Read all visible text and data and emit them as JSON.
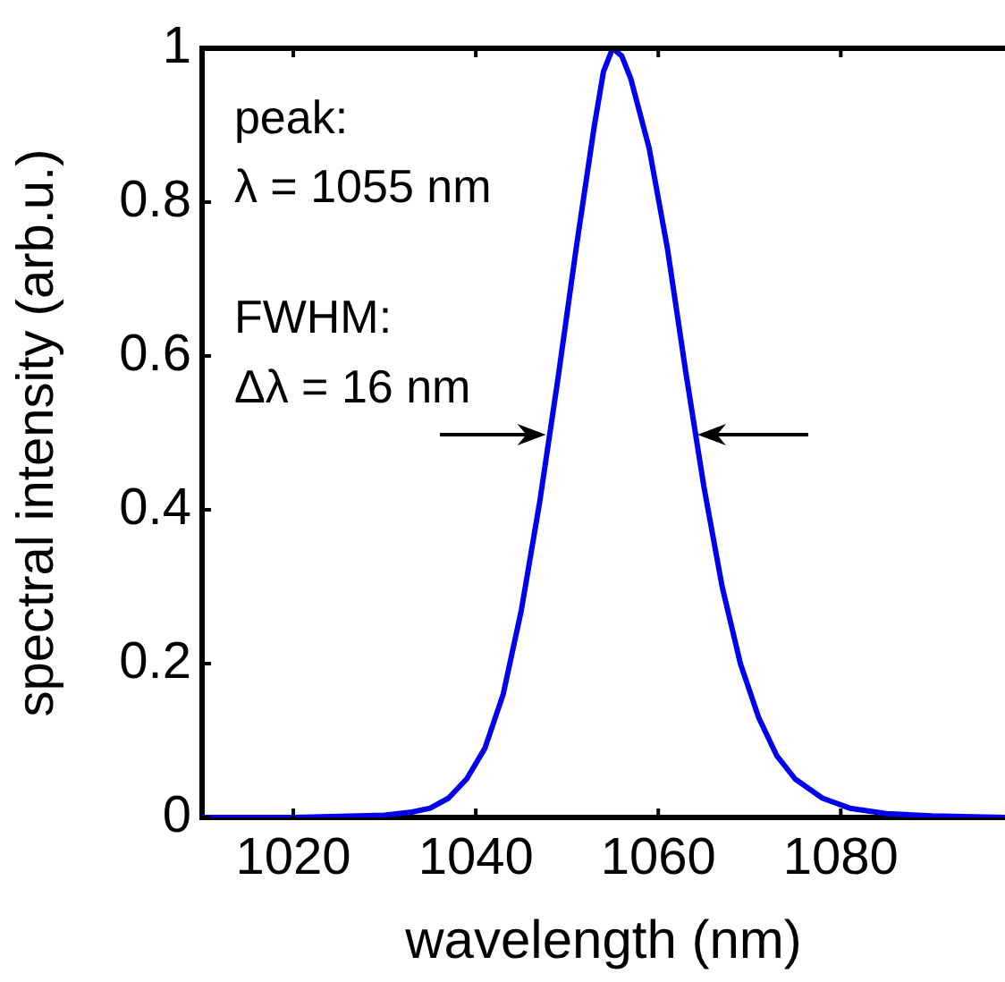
{
  "chart_data": {
    "type": "line",
    "xlabel": "wavelength (nm)",
    "ylabel": "spectral intensity (arb.u.)",
    "x": [
      1010,
      1020,
      1030,
      1033,
      1035,
      1037,
      1039,
      1041,
      1043,
      1045,
      1047,
      1049,
      1051,
      1053,
      1054,
      1055,
      1056,
      1057,
      1059,
      1061,
      1063,
      1065,
      1067,
      1069,
      1071,
      1073,
      1075,
      1078,
      1081,
      1085,
      1090,
      1098
    ],
    "series": [
      {
        "color": "#0000ee",
        "values": [
          0,
          0,
          0.003,
          0.007,
          0.012,
          0.025,
          0.05,
          0.09,
          0.16,
          0.27,
          0.41,
          0.57,
          0.74,
          0.9,
          0.97,
          1,
          0.99,
          0.96,
          0.87,
          0.74,
          0.58,
          0.43,
          0.3,
          0.2,
          0.13,
          0.08,
          0.05,
          0.025,
          0.012,
          0.005,
          0.002,
          0
        ]
      }
    ],
    "xlim": [
      1010,
      1098
    ],
    "xticks": [
      1020,
      1040,
      1060,
      1080
    ],
    "ylim": [
      0,
      1
    ],
    "yticks": [
      0,
      0.2,
      0.4,
      0.6,
      0.8,
      1
    ],
    "annotations": [
      "peak:",
      "λ = 1055 nm",
      "FWHM:",
      "Δλ = 16 nm"
    ],
    "grid": false,
    "legend": false,
    "marker": "none",
    "line_style": "solid"
  }
}
